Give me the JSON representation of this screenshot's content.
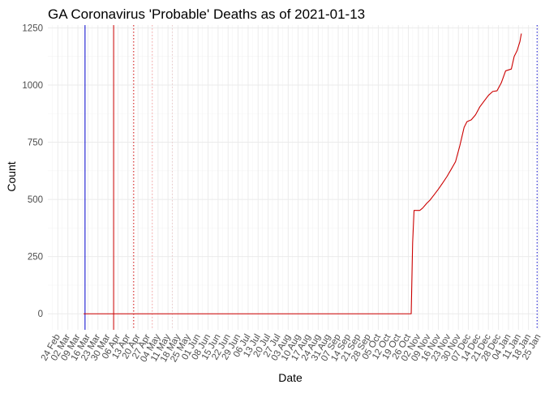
{
  "chart_data": {
    "type": "line",
    "title": "GA Coronavirus 'Probable' Deaths as of 2021-01-13",
    "xlabel": "Date",
    "ylabel": "Count",
    "xlim": [
      "2020-02-17",
      "2021-01-25"
    ],
    "ylim": [
      -70,
      1262
    ],
    "y_ticks": [
      0,
      250,
      500,
      750,
      1000,
      1250
    ],
    "x_tick_labels": [
      {
        "date": "2020-02-24",
        "label": "24 Feb"
      },
      {
        "date": "2020-03-02",
        "label": "02 Mar"
      },
      {
        "date": "2020-03-09",
        "label": "09 Mar"
      },
      {
        "date": "2020-03-16",
        "label": "16 Mar"
      },
      {
        "date": "2020-03-23",
        "label": "23 Mar"
      },
      {
        "date": "2020-03-30",
        "label": "30 Mar"
      },
      {
        "date": "2020-04-06",
        "label": "06 Apr"
      },
      {
        "date": "2020-04-13",
        "label": "13 Apr"
      },
      {
        "date": "2020-04-20",
        "label": "20 Apr"
      },
      {
        "date": "2020-04-27",
        "label": "27 Apr"
      },
      {
        "date": "2020-05-04",
        "label": "04 May"
      },
      {
        "date": "2020-05-11",
        "label": "11 May"
      },
      {
        "date": "2020-05-18",
        "label": "18 May"
      },
      {
        "date": "2020-05-25",
        "label": "25 May"
      },
      {
        "date": "2020-06-01",
        "label": "01 Jun"
      },
      {
        "date": "2020-06-08",
        "label": "08 Jun"
      },
      {
        "date": "2020-06-15",
        "label": "15 Jun"
      },
      {
        "date": "2020-06-22",
        "label": "22 Jun"
      },
      {
        "date": "2020-06-29",
        "label": "29 Jun"
      },
      {
        "date": "2020-07-06",
        "label": "06 Jul"
      },
      {
        "date": "2020-07-13",
        "label": "13 Jul"
      },
      {
        "date": "2020-07-20",
        "label": "20 Jul"
      },
      {
        "date": "2020-07-27",
        "label": "27 Jul"
      },
      {
        "date": "2020-08-03",
        "label": "03 Aug"
      },
      {
        "date": "2020-08-10",
        "label": "10 Aug"
      },
      {
        "date": "2020-08-17",
        "label": "17 Aug"
      },
      {
        "date": "2020-08-24",
        "label": "24 Aug"
      },
      {
        "date": "2020-08-31",
        "label": "31 Aug"
      },
      {
        "date": "2020-09-07",
        "label": "07 Sep"
      },
      {
        "date": "2020-09-14",
        "label": "14 Sep"
      },
      {
        "date": "2020-09-21",
        "label": "21 Sep"
      },
      {
        "date": "2020-09-28",
        "label": "28 Sep"
      },
      {
        "date": "2020-10-05",
        "label": "05 Oct"
      },
      {
        "date": "2020-10-12",
        "label": "12 Oct"
      },
      {
        "date": "2020-10-19",
        "label": "19 Oct"
      },
      {
        "date": "2020-10-26",
        "label": "26 Oct"
      },
      {
        "date": "2020-11-02",
        "label": "02 Nov"
      },
      {
        "date": "2020-11-09",
        "label": "09 Nov"
      },
      {
        "date": "2020-11-16",
        "label": "16 Nov"
      },
      {
        "date": "2020-11-23",
        "label": "23 Nov"
      },
      {
        "date": "2020-11-30",
        "label": "30 Nov"
      },
      {
        "date": "2020-12-07",
        "label": "07 Dec"
      },
      {
        "date": "2020-12-14",
        "label": "14 Dec"
      },
      {
        "date": "2020-12-21",
        "label": "21 Dec"
      },
      {
        "date": "2020-12-28",
        "label": "28 Dec"
      },
      {
        "date": "2021-01-04",
        "label": "04 Jan"
      },
      {
        "date": "2021-01-11",
        "label": "11 Jan"
      },
      {
        "date": "2021-01-18",
        "label": "18 Jan"
      },
      {
        "date": "2021-01-25",
        "label": "25 Jan"
      }
    ],
    "reference_lines": [
      {
        "date": "2020-03-14",
        "color": "#0000cc",
        "style": "solid"
      },
      {
        "date": "2020-04-03",
        "color": "#cc0000",
        "style": "solid"
      },
      {
        "date": "2020-04-17",
        "color": "#cc0000",
        "style": "dotted"
      },
      {
        "date": "2020-04-30",
        "color": "#f4a0a0",
        "style": "dotted"
      },
      {
        "date": "2020-05-14",
        "color": "#e8c8c8",
        "style": "dotted"
      },
      {
        "date": "2021-01-24",
        "color": "#0000cc",
        "style": "dotted"
      }
    ],
    "grid": true,
    "legend": "none",
    "series": [
      {
        "color": "#cc0000",
        "points": [
          [
            "2020-03-13",
            0
          ],
          [
            "2020-10-28",
            0
          ],
          [
            "2020-10-29",
            310
          ],
          [
            "2020-10-30",
            452
          ],
          [
            "2020-11-03",
            452
          ],
          [
            "2020-11-05",
            462
          ],
          [
            "2020-11-08",
            484
          ],
          [
            "2020-11-10",
            496
          ],
          [
            "2020-11-13",
            520
          ],
          [
            "2020-11-16",
            545
          ],
          [
            "2020-11-19",
            572
          ],
          [
            "2020-11-22",
            600
          ],
          [
            "2020-11-25",
            632
          ],
          [
            "2020-11-28",
            665
          ],
          [
            "2020-12-01",
            735
          ],
          [
            "2020-12-04",
            815
          ],
          [
            "2020-12-06",
            840
          ],
          [
            "2020-12-09",
            848
          ],
          [
            "2020-12-12",
            870
          ],
          [
            "2020-12-15",
            905
          ],
          [
            "2020-12-18",
            930
          ],
          [
            "2020-12-21",
            955
          ],
          [
            "2020-12-24",
            972
          ],
          [
            "2020-12-27",
            975
          ],
          [
            "2020-12-30",
            1010
          ],
          [
            "2021-01-02",
            1062
          ],
          [
            "2021-01-04",
            1066
          ],
          [
            "2021-01-06",
            1070
          ],
          [
            "2021-01-08",
            1125
          ],
          [
            "2021-01-10",
            1150
          ],
          [
            "2021-01-12",
            1190
          ],
          [
            "2021-01-13",
            1225
          ]
        ]
      }
    ]
  }
}
